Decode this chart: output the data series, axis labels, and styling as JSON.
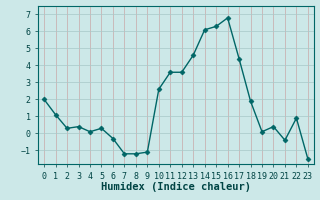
{
  "x": [
    0,
    1,
    2,
    3,
    4,
    5,
    6,
    7,
    8,
    9,
    10,
    11,
    12,
    13,
    14,
    15,
    16,
    17,
    18,
    19,
    20,
    21,
    22,
    23
  ],
  "y": [
    2.0,
    1.1,
    0.3,
    0.4,
    0.1,
    0.3,
    -0.3,
    -1.2,
    -1.2,
    -1.1,
    2.6,
    3.6,
    3.6,
    4.6,
    6.1,
    6.3,
    6.8,
    4.4,
    1.9,
    0.1,
    0.4,
    -0.4,
    0.9,
    -1.5
  ],
  "line_color": "#006666",
  "marker": "D",
  "marker_size": 2.5,
  "bg_color": "#cce8e8",
  "grid_color_minor": "#c0dcdc",
  "grid_color_major": "#a8c8c8",
  "xlabel": "Humidex (Indice chaleur)",
  "ylim": [
    -1.8,
    7.5
  ],
  "xlim": [
    -0.5,
    23.5
  ],
  "yticks": [
    -1,
    0,
    1,
    2,
    3,
    4,
    5,
    6,
    7
  ],
  "xticks": [
    0,
    1,
    2,
    3,
    4,
    5,
    6,
    7,
    8,
    9,
    10,
    11,
    12,
    13,
    14,
    15,
    16,
    17,
    18,
    19,
    20,
    21,
    22,
    23
  ],
  "tick_label_fontsize": 6,
  "xlabel_fontsize": 7.5,
  "axis_color": "#004444",
  "spine_color": "#006666",
  "linewidth": 1.0
}
